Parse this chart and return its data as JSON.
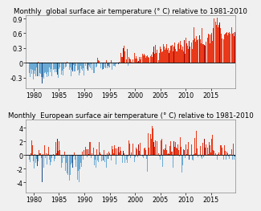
{
  "title_global": "Monthly  global surface air temperature (° C) relative to 1981-2010",
  "title_european": "Monthly  European surface air temperature (° C) relative to 1981-2010",
  "start_year": 1979,
  "start_month": 1,
  "end_year": 2019,
  "end_month": 9,
  "color_positive": "#e8391a",
  "color_negative": "#6aaad4",
  "color_positive_dark": "#a00000",
  "color_negative_dark": "#1a4a8a",
  "ylim_global": [
    -0.52,
    0.97
  ],
  "ylim_european": [
    -5.5,
    5.3
  ],
  "yticks_global": [
    -0.3,
    0.0,
    0.3,
    0.6,
    0.9
  ],
  "yticks_european": [
    -4,
    -2,
    0,
    2,
    4
  ],
  "xlim": [
    1978.5,
    2019.85
  ],
  "xticks": [
    1980,
    1985,
    1990,
    1995,
    2000,
    2005,
    2010,
    2015
  ],
  "background_color": "#f0f0f0",
  "title_fontsize": 6.2,
  "tick_fontsize": 5.8,
  "fig_facecolor": "#f0f0f0"
}
